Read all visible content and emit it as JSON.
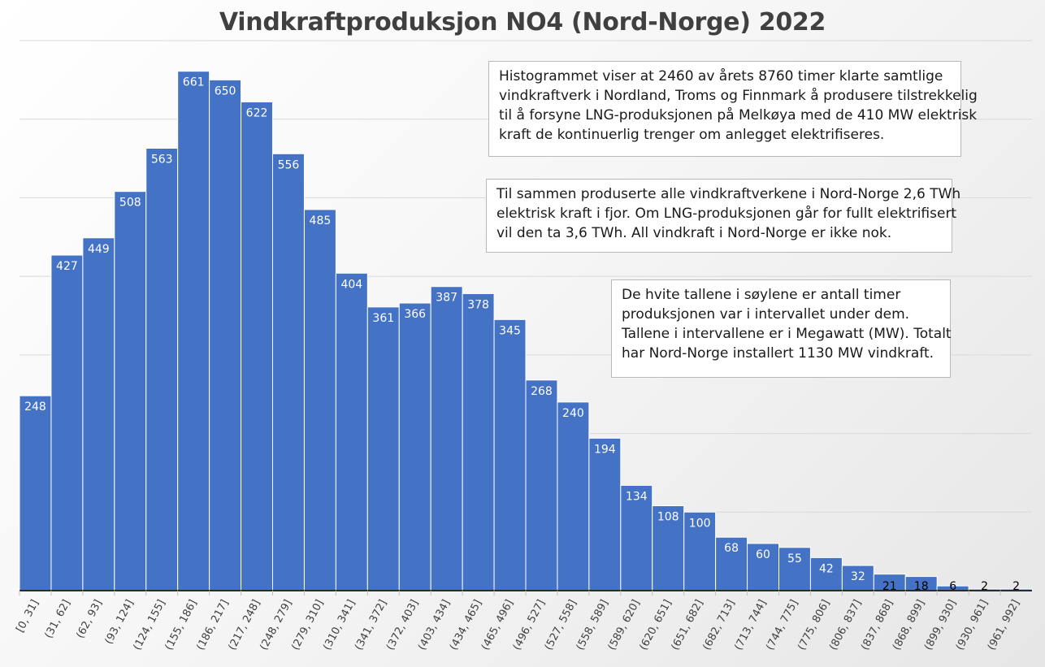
{
  "chart_data": {
    "type": "bar",
    "title": "Vindkraftproduksjon NO4 (Nord-Norge) 2022",
    "xlabel": "",
    "ylabel": "",
    "categories": [
      "[0, 31]",
      "(31, 62]",
      "(62, 93]",
      "(93, 124]",
      "(124, 155]",
      "(155, 186]",
      "(186, 217]",
      "(217, 248]",
      "(248, 279]",
      "(279, 310]",
      "(310, 341]",
      "(341, 372]",
      "(372, 403]",
      "(403, 434]",
      "(434, 465]",
      "(465, 496]",
      "(496, 527]",
      "(527, 558]",
      "(558, 589]",
      "(589, 620]",
      "(620, 651]",
      "(651, 682]",
      "(682, 713]",
      "(713, 744]",
      "(744, 775]",
      "(775, 806]",
      "(806, 837]",
      "(837, 868]",
      "(868, 899]",
      "(899, 930]",
      "(930, 961]",
      "(961, 992]"
    ],
    "values": [
      248,
      427,
      449,
      508,
      563,
      661,
      650,
      622,
      556,
      485,
      404,
      361,
      366,
      387,
      378,
      345,
      268,
      240,
      194,
      134,
      108,
      100,
      68,
      60,
      55,
      42,
      32,
      21,
      18,
      6,
      2,
      2
    ],
    "ylim": [
      0,
      700
    ],
    "grid": true,
    "legend": "none",
    "colors": {
      "bar": "#4472c4",
      "bar_edge": "#ffffff",
      "label_inside": "#ffffff",
      "label_outside": "#000000",
      "axis": "#2b2b2b",
      "grid": "#d9d9d9"
    }
  },
  "annotations": {
    "note1": [
      "Histogrammet viser at 2460 av årets 8760 timer klarte samtlige",
      "vindkraftverk i Nordland, Troms og Finnmark å produsere tilstrekkelig",
      "til å forsyne LNG-produksjonen på Melkøya med de 410 MW elektrisk",
      "kraft de kontinuerlig trenger om anlegget elektrifiseres."
    ],
    "note2": [
      "Til sammen produserte alle vindkraftverkene i Nord-Norge 2,6 TWh",
      "elektrisk kraft i fjor. Om LNG-produksjonen går for fullt elektrifisert",
      "vil den ta 3,6 TWh. All vindkraft i Nord-Norge er ikke nok."
    ],
    "note3": [
      "De hvite tallene i søylene er antall timer",
      "produksjonen var i intervallet under dem.",
      "Tallene i intervallene er i Megawatt (MW). Totalt",
      "har Nord-Norge installert 1130 MW vindkraft."
    ]
  }
}
